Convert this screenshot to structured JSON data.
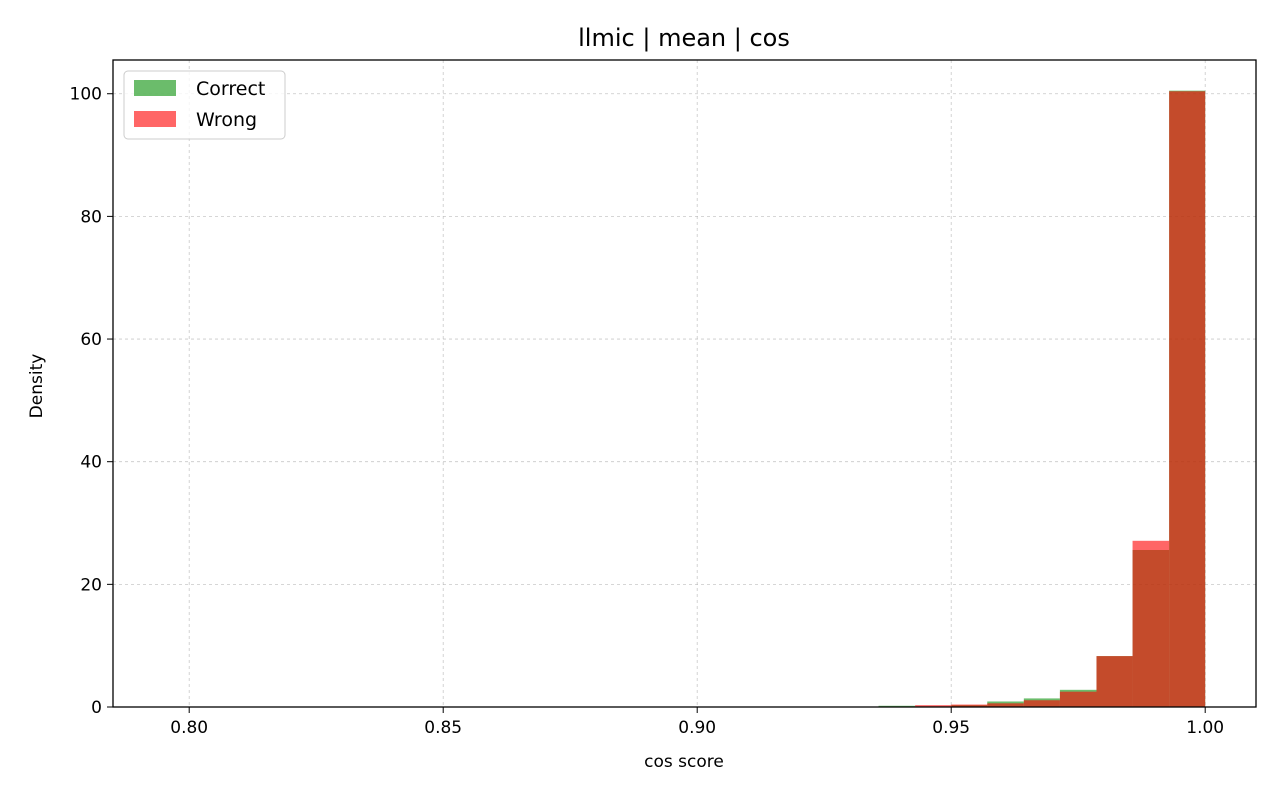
{
  "chart_data": {
    "type": "bar",
    "title": "llmic | mean | cos",
    "xlabel": "cos score",
    "ylabel": "Density",
    "xlim": [
      0.785,
      1.01
    ],
    "ylim": [
      0,
      105.5
    ],
    "xticks": [
      0.8,
      0.85,
      0.9,
      0.95,
      1.0
    ],
    "xtick_labels": [
      "0.80",
      "0.85",
      "0.90",
      "0.95",
      "1.00"
    ],
    "yticks": [
      0,
      20,
      40,
      60,
      80,
      100
    ],
    "ytick_labels": [
      "0",
      "20",
      "40",
      "60",
      "80",
      "100"
    ],
    "grid": true,
    "legend_position": "top-left",
    "bin_edges": [
      0.9357,
      0.9429,
      0.95,
      0.9571,
      0.9643,
      0.9714,
      0.9786,
      0.9857,
      0.9929,
      1.0
    ],
    "series": [
      {
        "name": "Correct",
        "color": "#2ca02c",
        "opacity": 0.7,
        "values": [
          0.2,
          0.1,
          0.3,
          0.9,
          1.4,
          2.8,
          8.3,
          25.6,
          100.5
        ]
      },
      {
        "name": "Wrong",
        "color": "#ff0000",
        "opacity": 0.6,
        "values": [
          0.05,
          0.3,
          0.4,
          0.6,
          1.1,
          2.5,
          8.3,
          27.1,
          100.4
        ]
      }
    ]
  }
}
